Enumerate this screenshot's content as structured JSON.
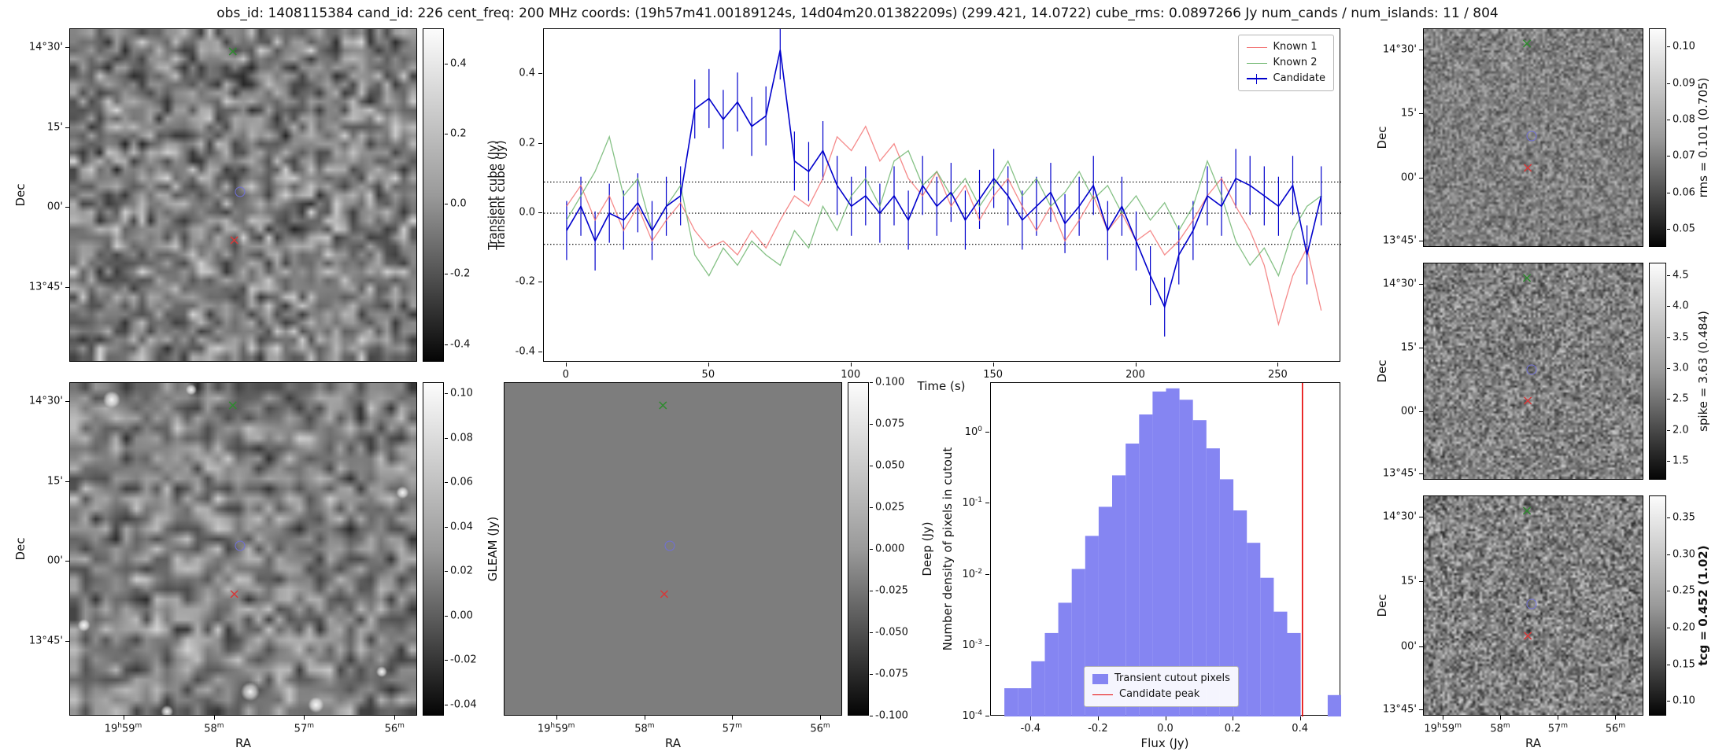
{
  "title": "obs_id: 1408115384 cand_id: 226 cent_freq: 200 MHz coords: (19h57m41.00189124s, 14d04m20.01382209s) (299.421, 14.0722) cube_rms: 0.0897266 Jy num_cands / num_islands: 11 / 804",
  "sky_axes": {
    "dec_label": "Dec",
    "ra_label": "RA",
    "dec_tick_labels": [
      "14°30'",
      "15'",
      "00'",
      "13°45'"
    ],
    "ra_tick_labels": [
      "19h59m",
      "58m",
      "57m",
      "56m"
    ],
    "dec_fracs_left": [
      0.057,
      0.296,
      0.536,
      0.776
    ],
    "dec_fracs_right": [
      0.098,
      0.39,
      0.685,
      0.972
    ],
    "ra_fracs_main": [
      0.155,
      0.416,
      0.675,
      0.935
    ],
    "ra_fracs_right": [
      0.09,
      0.35,
      0.612,
      0.873
    ]
  },
  "markers": [
    {
      "id": "known2-source",
      "shape": "x",
      "color": "#2e8b2e",
      "fx": 0.468,
      "fy": 0.068
    },
    {
      "id": "candidate-source",
      "shape": "circle",
      "color": "#7070d8",
      "fx": 0.488,
      "fy": 0.488
    },
    {
      "id": "known1-source",
      "shape": "x",
      "color": "#d43a3a",
      "fx": 0.472,
      "fy": 0.635
    }
  ],
  "colorbars": {
    "transient": {
      "label": "Transient cube (Jy)",
      "vmin": -0.45,
      "vmax": 0.5,
      "ticks": [
        "0.4",
        "0.2",
        "0.0",
        "-0.2",
        "-0.4"
      ],
      "bold": false
    },
    "gleam": {
      "label": "GLEAM (Jy)",
      "vmin": -0.045,
      "vmax": 0.105,
      "ticks": [
        "0.10",
        "0.08",
        "0.06",
        "0.04",
        "0.02",
        "0.00",
        "-0.02",
        "-0.04"
      ],
      "bold": false
    },
    "deep": {
      "label": "Deep (Jy)",
      "vmin": -0.1,
      "vmax": 0.1,
      "ticks": [
        "0.100",
        "0.075",
        "0.050",
        "0.025",
        "0.000",
        "-0.025",
        "-0.050",
        "-0.075",
        "-0.100"
      ],
      "bold": false
    },
    "rms": {
      "label": "rms = 0.101 (0.705)",
      "vmin": 0.045,
      "vmax": 0.105,
      "ticks": [
        "0.10",
        "0.09",
        "0.08",
        "0.07",
        "0.06",
        "0.05"
      ],
      "bold": false
    },
    "spike": {
      "label": "spike = 3.63 (0.484)",
      "vmin": 1.2,
      "vmax": 4.7,
      "ticks": [
        "4.5",
        "4.0",
        "3.5",
        "3.0",
        "2.5",
        "2.0",
        "1.5"
      ],
      "bold": false
    },
    "tcg": {
      "label": "tcg = 0.452 (1.02)",
      "vmin": 0.08,
      "vmax": 0.38,
      "ticks": [
        "0.35",
        "0.30",
        "0.25",
        "0.20",
        "0.15",
        "0.10"
      ],
      "bold": true
    }
  },
  "chart_data": [
    {
      "id": "lightcurve",
      "type": "line",
      "xlabel": "Time (s)",
      "ylabel": "Transient cube (Jy)",
      "xlim": [
        -8,
        272
      ],
      "ylim": [
        -0.43,
        0.53
      ],
      "xticks": [
        0,
        50,
        100,
        150,
        200,
        250
      ],
      "yticks": [
        0.4,
        0.2,
        0.0,
        -0.2,
        -0.4
      ],
      "hlines": [
        0.0897,
        0.0,
        -0.0897
      ],
      "legend_position": "upper right",
      "x": [
        0,
        5,
        10,
        15,
        20,
        25,
        30,
        35,
        40,
        45,
        50,
        55,
        60,
        65,
        70,
        75,
        80,
        85,
        90,
        95,
        100,
        105,
        110,
        115,
        120,
        125,
        130,
        135,
        140,
        145,
        150,
        155,
        160,
        165,
        170,
        175,
        180,
        185,
        190,
        195,
        200,
        205,
        210,
        215,
        220,
        225,
        230,
        235,
        240,
        245,
        250,
        255,
        260,
        265
      ],
      "series": [
        {
          "name": "Known 1",
          "color": "#f26d6d",
          "values": [
            0.02,
            0.08,
            -0.02,
            0.05,
            -0.05,
            0.02,
            -0.08,
            -0.02,
            0.03,
            -0.05,
            -0.1,
            -0.08,
            -0.12,
            -0.05,
            -0.1,
            -0.02,
            0.05,
            0.02,
            0.1,
            0.22,
            0.18,
            0.25,
            0.15,
            0.2,
            0.1,
            0.05,
            0.12,
            0.02,
            0.08,
            -0.02,
            0.05,
            0.1,
            0.02,
            -0.05,
            0.02,
            -0.08,
            -0.02,
            0.05,
            -0.05,
            0.0,
            -0.08,
            -0.05,
            -0.12,
            -0.08,
            -0.02,
            0.05,
            0.1,
            0.02,
            -0.05,
            -0.15,
            -0.32,
            -0.18,
            -0.1,
            -0.28
          ]
        },
        {
          "name": "Known 2",
          "color": "#66b266",
          "values": [
            -0.02,
            0.05,
            0.12,
            0.22,
            0.05,
            0.1,
            -0.05,
            0.02,
            0.08,
            -0.12,
            -0.18,
            -0.1,
            -0.15,
            -0.08,
            -0.12,
            -0.15,
            -0.05,
            -0.1,
            0.02,
            -0.05,
            0.05,
            0.1,
            0.02,
            0.15,
            0.18,
            0.08,
            0.12,
            0.05,
            0.1,
            0.02,
            0.08,
            0.15,
            0.05,
            0.1,
            0.02,
            0.06,
            0.12,
            0.04,
            0.08,
            0.0,
            0.05,
            -0.02,
            0.03,
            -0.05,
            0.02,
            0.15,
            0.05,
            -0.08,
            -0.15,
            -0.1,
            -0.18,
            -0.05,
            0.02,
            0.05
          ]
        },
        {
          "name": "Candidate",
          "color": "#0000cc",
          "yerr": 0.085,
          "values": [
            -0.05,
            0.02,
            -0.08,
            0.0,
            -0.02,
            0.03,
            -0.05,
            0.02,
            0.05,
            0.3,
            0.33,
            0.27,
            0.32,
            0.25,
            0.28,
            0.47,
            0.15,
            0.12,
            0.18,
            0.08,
            0.02,
            0.05,
            0.0,
            0.05,
            -0.02,
            0.08,
            0.02,
            0.06,
            -0.02,
            0.04,
            0.1,
            0.05,
            -0.02,
            0.02,
            0.06,
            -0.03,
            0.02,
            0.08,
            -0.05,
            0.02,
            -0.08,
            -0.18,
            -0.27,
            -0.12,
            -0.05,
            0.05,
            0.02,
            0.1,
            0.08,
            0.05,
            0.02,
            0.08,
            -0.12,
            0.05
          ]
        }
      ]
    },
    {
      "id": "pixel_histogram",
      "type": "bar",
      "xlabel": "Flux (Jy)",
      "ylabel": "Number density of pixels in cutout",
      "xlim": [
        -0.52,
        0.52
      ],
      "ylog": true,
      "ylim": [
        0.0001,
        5
      ],
      "xticks": [
        -0.4,
        -0.2,
        0.0,
        0.2,
        0.4
      ],
      "ytick_exponents": [
        0,
        -1,
        -2,
        -3,
        -4
      ],
      "bin_start": -0.48,
      "bin_width": 0.04,
      "values": [
        0.00025,
        0.00025,
        0.0006,
        0.0015,
        0.004,
        0.012,
        0.035,
        0.09,
        0.25,
        0.7,
        1.8,
        3.8,
        4.2,
        2.9,
        1.5,
        0.6,
        0.22,
        0.08,
        0.028,
        0.009,
        0.003,
        0.0015,
        0,
        0,
        0.0002
      ],
      "fill_color": "#8585f2",
      "vline": {
        "x": 0.405,
        "color": "#e60000"
      },
      "legend": [
        "Transient cutout pixels",
        "Candidate peak"
      ],
      "legend_position": "lower center"
    },
    {
      "id": "transient_cutout_image",
      "type": "heatmap",
      "colorbar_label": "Transient cube (Jy)",
      "value_range": [
        -0.45,
        0.5
      ],
      "content": "grayscale noise cutout with known/candidate sky markers"
    },
    {
      "id": "gleam_image",
      "type": "heatmap",
      "colorbar_label": "GLEAM (Jy)",
      "value_range": [
        -0.045,
        0.105
      ],
      "content": "grayscale GLEAM cutout with bright point sources and sky markers"
    },
    {
      "id": "deep_image",
      "type": "heatmap",
      "colorbar_label": "Deep (Jy)",
      "value_range": [
        -0.1,
        0.1
      ],
      "content": "uniform mid-gray deep image with sky markers"
    },
    {
      "id": "rms_image",
      "type": "heatmap",
      "colorbar_label": "rms = 0.101 (0.705)",
      "value_range": [
        0.045,
        0.105
      ],
      "content": "fine grayscale speckle noise map"
    },
    {
      "id": "spike_image",
      "type": "heatmap",
      "colorbar_label": "spike = 3.63 (0.484)",
      "value_range": [
        1.2,
        4.7
      ],
      "content": "fine grayscale speckle noise map"
    },
    {
      "id": "tcg_image",
      "type": "heatmap",
      "colorbar_label": "tcg = 0.452 (1.02)",
      "value_range": [
        0.08,
        0.38
      ],
      "content": "fine grayscale speckle noise map"
    }
  ]
}
